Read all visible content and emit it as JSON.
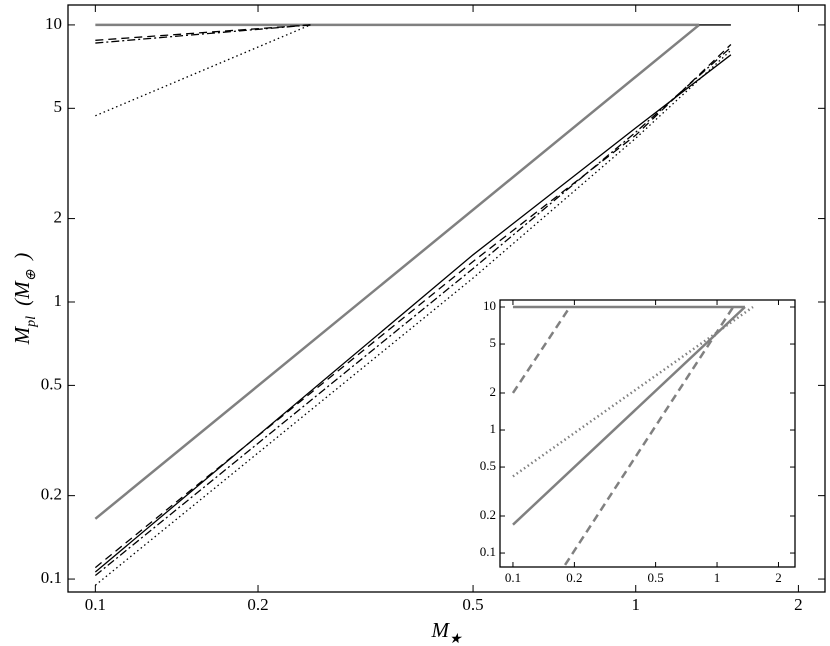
{
  "chart_data": [
    {
      "type": "line",
      "xscale": "log",
      "yscale": "log",
      "xlabel": [
        "M",
        "★"
      ],
      "ylabel": [
        "M",
        "pl",
        "(M",
        "⊕",
        ")"
      ],
      "xlim": [
        0.089,
        2.24
      ],
      "ylim": [
        0.0898,
        11.8
      ],
      "xticks": [
        0.1,
        0.2,
        0.5,
        1,
        2
      ],
      "yticks": [
        0.1,
        0.2,
        0.5,
        1,
        2,
        5,
        10
      ],
      "series": [
        {
          "color": "#808080",
          "dash": "solid",
          "width": 2.5,
          "x": [
            0.1,
            1.31
          ],
          "values": [
            10,
            10
          ]
        },
        {
          "color": "#000000",
          "dash": "solid",
          "width": 1.3,
          "x": [
            1.31,
            1.5
          ],
          "values": [
            10,
            10
          ]
        },
        {
          "color": "#808080",
          "dash": "solid",
          "width": 2.5,
          "x": [
            0.1,
            1.31
          ],
          "values": [
            0.165,
            10
          ]
        },
        {
          "color": "#000000",
          "dash": "solid",
          "width": 1.3,
          "x": [
            0.1,
            0.5,
            1,
            1.5
          ],
          "values": [
            0.106,
            1.48,
            4.25,
            7.8
          ]
        },
        {
          "color": "#000000",
          "dash": "dashed",
          "width": 1.3,
          "x": [
            0.1,
            0.5,
            1,
            1.5
          ],
          "values": [
            0.11,
            1.4,
            4.0,
            8.5
          ]
        },
        {
          "color": "#000000",
          "dash": "dashdot",
          "width": 1.3,
          "x": [
            0.1,
            0.5,
            1,
            1.5
          ],
          "values": [
            0.103,
            1.32,
            4.1,
            8.3
          ]
        },
        {
          "color": "#000000",
          "dash": "dotted",
          "width": 1.3,
          "x": [
            0.1,
            0.5,
            1,
            1.5
          ],
          "values": [
            0.095,
            1.22,
            3.9,
            8.1
          ]
        },
        {
          "color": "#000000",
          "dash": "dashed",
          "width": 1.3,
          "x": [
            0.1,
            0.25
          ],
          "values": [
            8.8,
            10
          ]
        },
        {
          "color": "#000000",
          "dash": "dashdot",
          "width": 1.3,
          "x": [
            0.1,
            0.25
          ],
          "values": [
            8.6,
            10
          ]
        },
        {
          "color": "#000000",
          "dash": "dotted",
          "width": 1.3,
          "x": [
            0.1,
            0.25
          ],
          "values": [
            4.7,
            10
          ]
        }
      ]
    },
    {
      "type": "line",
      "xscale": "log",
      "yscale": "log",
      "xlim": [
        0.0864,
        2.41
      ],
      "ylim": [
        0.077,
        11.4
      ],
      "xticks": [
        0.1,
        0.2,
        0.5,
        1,
        2
      ],
      "yticks": [
        0.1,
        0.2,
        0.5,
        1,
        2,
        5,
        10
      ],
      "series": [
        {
          "color": "#808080",
          "dash": "solid",
          "width": 2.5,
          "x": [
            0.1,
            1.37
          ],
          "values": [
            10,
            10
          ]
        },
        {
          "color": "#808080",
          "dash": "solid",
          "width": 2.5,
          "x": [
            0.1,
            1.37
          ],
          "values": [
            0.17,
            10
          ]
        },
        {
          "color": "#808080",
          "dash": "dotted",
          "width": 2.5,
          "x": [
            0.1,
            1.5
          ],
          "values": [
            0.42,
            10
          ]
        },
        {
          "color": "#808080",
          "dash": "dashed",
          "width": 2.5,
          "x": [
            0.1,
            0.19
          ],
          "values": [
            2.0,
            10
          ]
        },
        {
          "color": "#808080",
          "dash": "dashed",
          "width": 2.5,
          "x": [
            0.18,
            1.2
          ],
          "values": [
            0.08,
            10
          ]
        }
      ]
    }
  ]
}
